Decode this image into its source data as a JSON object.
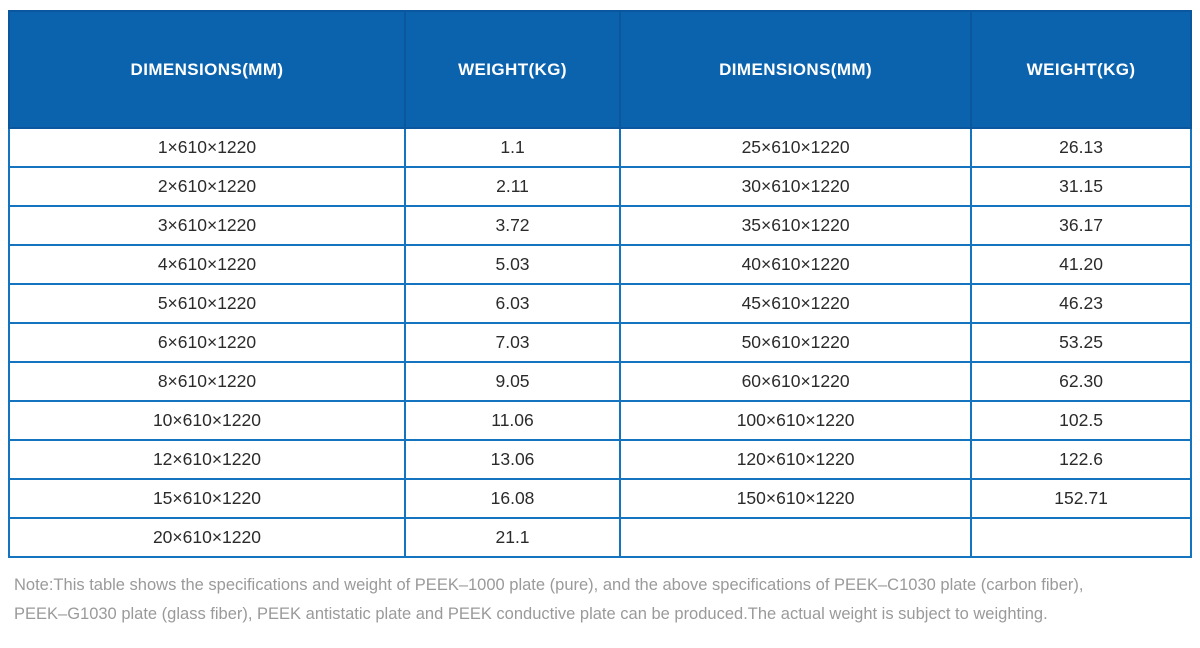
{
  "table": {
    "headers": [
      "DIMENSIONS(MM)",
      "WEIGHT(KG)",
      "DIMENSIONS(MM)",
      "WEIGHT(KG)"
    ],
    "rows": [
      [
        "1×610×1220",
        "1.1",
        "25×610×1220",
        "26.13"
      ],
      [
        "2×610×1220",
        "2.11",
        "30×610×1220",
        "31.15"
      ],
      [
        "3×610×1220",
        "3.72",
        "35×610×1220",
        "36.17"
      ],
      [
        "4×610×1220",
        "5.03",
        "40×610×1220",
        "41.20"
      ],
      [
        "5×610×1220",
        "6.03",
        "45×610×1220",
        "46.23"
      ],
      [
        "6×610×1220",
        "7.03",
        "50×610×1220",
        "53.25"
      ],
      [
        "8×610×1220",
        "9.05",
        "60×610×1220",
        "62.30"
      ],
      [
        "10×610×1220",
        "11.06",
        "100×610×1220",
        "102.5"
      ],
      [
        "12×610×1220",
        "13.06",
        "120×610×1220",
        "122.6"
      ],
      [
        "15×610×1220",
        "16.08",
        "150×610×1220",
        "152.71"
      ],
      [
        "20×610×1220",
        "21.1",
        "",
        ""
      ]
    ]
  },
  "note": {
    "line1": "Note:This table shows the specifications and weight of PEEK–1000 plate (pure), and the above specifications of PEEK–C1030 plate (carbon fiber),",
    "line2": "PEEK–G1030 plate (glass fiber), PEEK antistatic plate and PEEK conductive plate can be produced.The actual weight is subject to weighting."
  },
  "colors": {
    "header_bg": "#0b63ae",
    "header_divider": "#0a57a0",
    "body_border": "#1474c0",
    "header_text": "#ffffff",
    "cell_text": "#2b2b2b",
    "note_text": "#9a9a9a"
  }
}
